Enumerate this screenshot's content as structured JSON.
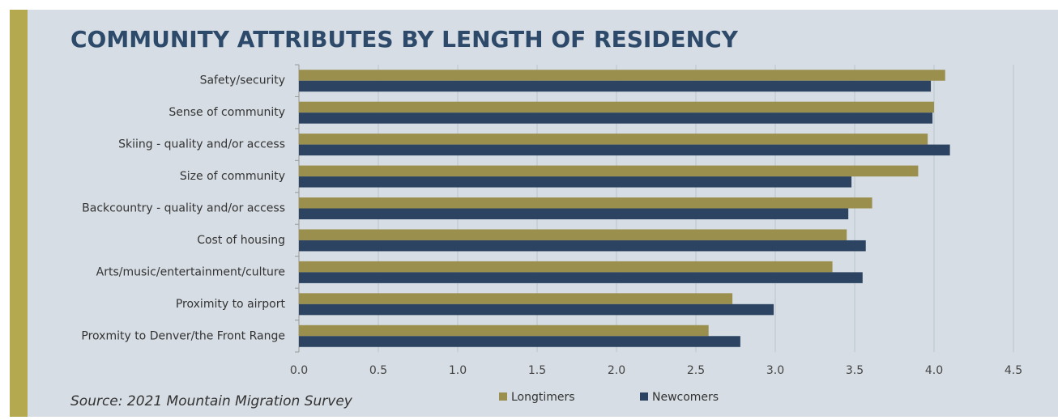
{
  "chart_data": {
    "type": "barh",
    "title": "COMMUNITY ATTRIBUTES BY LENGTH OF RESIDENCY",
    "annotation": "Source: 2021 Mountain Migration Survey",
    "categories": [
      "Safety/security",
      "Sense of community",
      "Skiing - quality and/or access",
      "Size of community",
      "Backcountry - quality and/or access",
      "Cost of housing",
      "Arts/music/entertainment/culture",
      "Proximity to airport",
      "Proxmity to Denver/the Front Range"
    ],
    "series": [
      {
        "name": "Longtimers",
        "color": "#9b8f4e",
        "values": [
          4.07,
          4.0,
          3.96,
          3.9,
          3.61,
          3.45,
          3.36,
          2.73,
          2.58
        ]
      },
      {
        "name": "Newcomers",
        "color": "#2c4462",
        "values": [
          3.98,
          3.99,
          4.1,
          3.48,
          3.46,
          3.57,
          3.55,
          2.99,
          2.78
        ]
      }
    ],
    "xlim": [
      0,
      4.5
    ],
    "xticks": [
      {
        "value": 0,
        "label": "0.0"
      },
      0.5,
      {
        "value": 1,
        "label": "1.0"
      },
      1.5,
      {
        "value": 2,
        "label": "2.0"
      },
      2.5,
      {
        "value": 3,
        "label": "3.0"
      },
      3.5,
      {
        "value": 4,
        "label": "4.0"
      },
      4.5
    ],
    "grid": true,
    "legend": "bottom"
  }
}
